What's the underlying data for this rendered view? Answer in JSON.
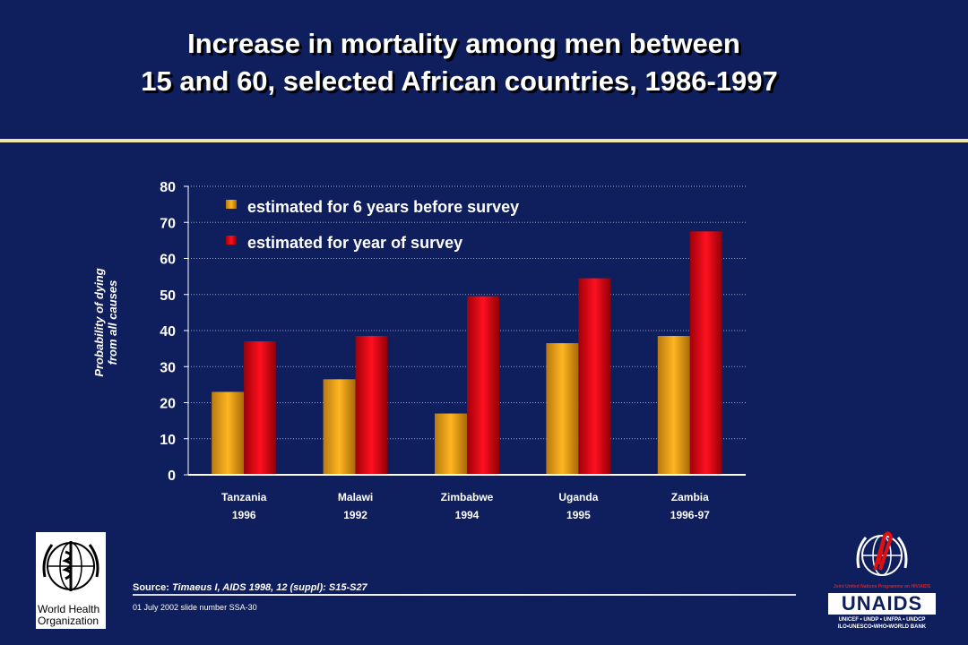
{
  "slide": {
    "title_line1": "Increase in mortality among men between",
    "title_line2": "15 and 60, selected African countries, 1986-1997",
    "source_prefix": "Source:",
    "source_ref": "Timaeus I, AIDS 1998, 12 (suppl): S15-S27",
    "slide_number": "01 July 2002 slide number SSA-30"
  },
  "logos": {
    "who_text_line1": "World Health",
    "who_text_line2": "Organization",
    "unaids_word": "UNAIDS",
    "unaids_tagline": "Joint United Nations Programme on HIV/AIDS",
    "unaids_sub1": "UNICEF • UNDP • UNFPA • UNDCP",
    "unaids_sub2": "ILO•UNESCO•WHO•WORLD BANK"
  },
  "colors": {
    "background": "#0f1e5c",
    "series1": "#e8a018",
    "series2": "#d80010",
    "rule": "#f2e6a6"
  },
  "chart_data": {
    "type": "bar",
    "ylabel_line1": "Probability of dying",
    "ylabel_line2": "from all causes",
    "ylim": [
      0,
      80
    ],
    "yticks": [
      "0",
      "10",
      "20",
      "30",
      "40",
      "50",
      "60",
      "70",
      "80"
    ],
    "grid": true,
    "legend_position": "top-left",
    "categories": [
      {
        "line1": "Tanzania",
        "line2": "1996"
      },
      {
        "line1": "Malawi",
        "line2": "1992"
      },
      {
        "line1": "Zimbabwe",
        "line2": "1994"
      },
      {
        "line1": "Uganda",
        "line2": "1995"
      },
      {
        "line1": "Zambia",
        "line2": "1996-97"
      }
    ],
    "series": [
      {
        "name": "estimated for 6 years before survey",
        "values": [
          23,
          26.5,
          17,
          36.5,
          38.5
        ]
      },
      {
        "name": "estimated for year of survey",
        "values": [
          37,
          38.5,
          49.5,
          54.5,
          67.5
        ]
      }
    ]
  }
}
